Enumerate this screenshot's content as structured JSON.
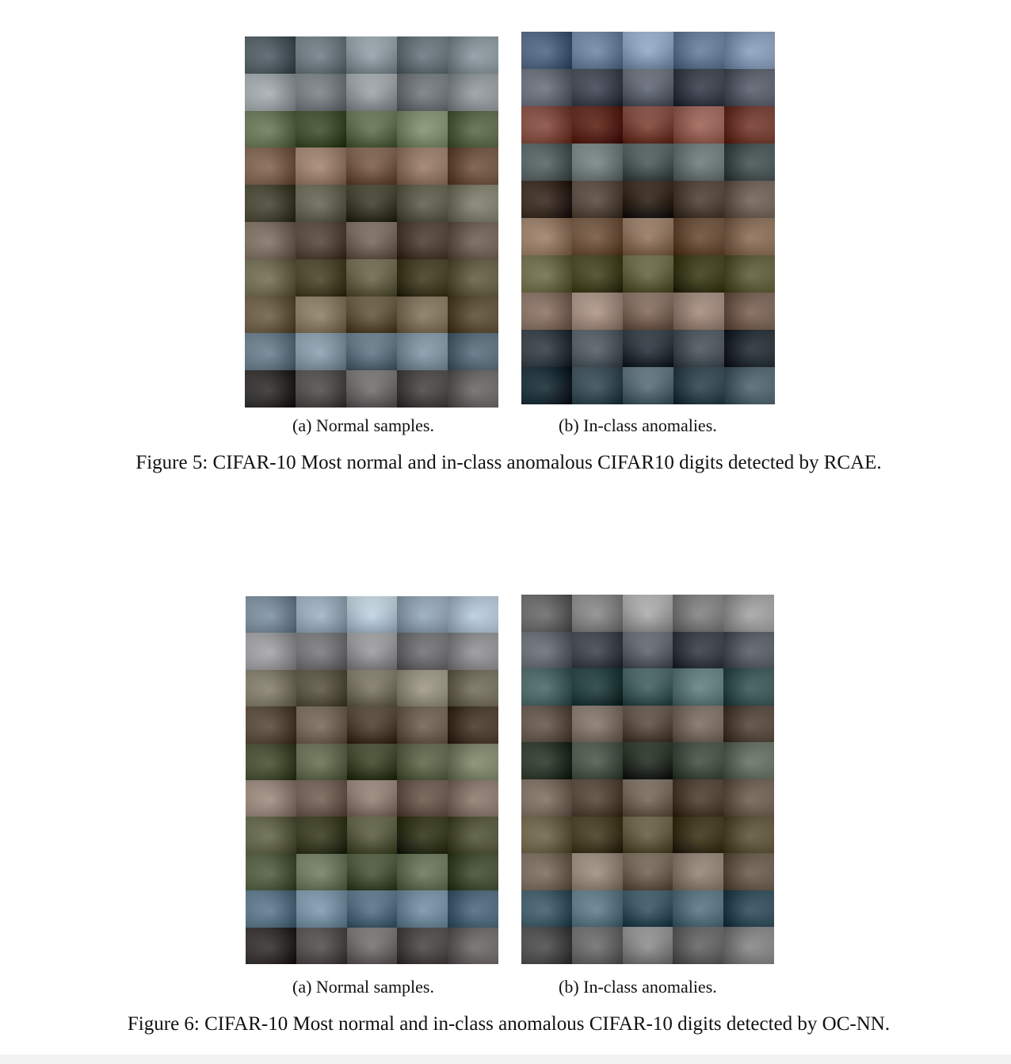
{
  "figures": [
    {
      "id": "fig5",
      "subcaption_a": "(a) Normal samples.",
      "subcaption_b": "(b) In-class anomalies.",
      "caption": "Figure 5: CIFAR-10 Most normal and in-class anomalous CIFAR10 digits detected by RCAE."
    },
    {
      "id": "fig6",
      "subcaption_a": "(a) Normal samples.",
      "subcaption_b": "(b) In-class anomalies.",
      "caption": "Figure 6: CIFAR-10 Most normal and in-class anomalous CIFAR-10 digits detected by OC-NN."
    }
  ],
  "grid": {
    "rows": 10,
    "cols": 5
  },
  "palette": {
    "fig5_a": [
      "#6f7e86",
      "#8c9498",
      "#5e6e4a",
      "#8a6a52",
      "#5c5a46",
      "#5b4a3c",
      "#5f5a3a",
      "#6a5a3e",
      "#7890a0",
      "#4c4848"
    ],
    "fig5_b": [
      "#6d86a8",
      "#4b5260",
      "#7c3c2e",
      "#5a6868",
      "#4a3a2e",
      "#7a5a40",
      "#5a5a30",
      "#8a7060",
      "#3c4650",
      "#2f4650"
    ],
    "fig6_a": [
      "#9fb4c6",
      "#8a8a8e",
      "#7a7460",
      "#5c4c3a",
      "#5a6444",
      "#7a6658",
      "#4c5030",
      "#4c5a3a",
      "#6a8aa0",
      "#4e4a48"
    ],
    "fig6_b": [
      "#8a8a8c",
      "#4a5058",
      "#3a5a5a",
      "#6a5a4e",
      "#3e4a3c",
      "#5a4a3a",
      "#5a5030",
      "#7a6a5a",
      "#4a6a7a",
      "#6a6a6a"
    ]
  }
}
